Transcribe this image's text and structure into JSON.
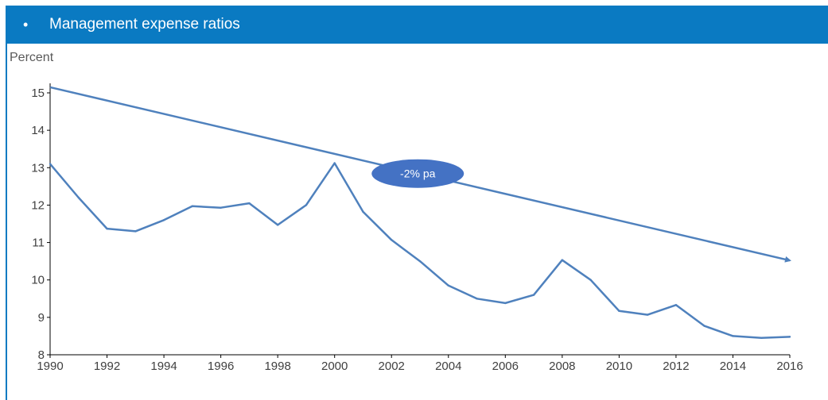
{
  "header": {
    "bullet": "•",
    "title": "Management expense ratios"
  },
  "chart_data": {
    "type": "line",
    "title": "Management expense ratios",
    "ylabel": "Percent",
    "xlabel": "",
    "x": [
      1990,
      1991,
      1992,
      1993,
      1994,
      1995,
      1996,
      1997,
      1998,
      1999,
      2000,
      2001,
      2002,
      2003,
      2004,
      2005,
      2006,
      2007,
      2008,
      2009,
      2010,
      2011,
      2012,
      2013,
      2014,
      2015,
      2016
    ],
    "series": [
      {
        "values": [
          13.1,
          12.2,
          11.37,
          11.3,
          11.6,
          11.97,
          11.93,
          12.05,
          11.47,
          12.0,
          13.12,
          11.82,
          11.07,
          10.5,
          9.85,
          9.5,
          9.38,
          9.6,
          10.53,
          10.0,
          9.17,
          9.07,
          9.33,
          8.77,
          8.5,
          8.45,
          8.48
        ],
        "color": "#4f81bd"
      }
    ],
    "trend": {
      "from": [
        1990,
        15.15
      ],
      "to": [
        2016,
        10.52
      ],
      "color": "#4f81bd",
      "label": "-2% pa",
      "label_at": [
        2002,
        12.8
      ],
      "label_bg": "#4472c4"
    },
    "xlim": [
      1990,
      2016
    ],
    "ylim": [
      8,
      15
    ],
    "yticks": [
      8,
      9,
      10,
      11,
      12,
      13,
      14,
      15
    ],
    "xticks": [
      1990,
      1992,
      1994,
      1996,
      1998,
      2000,
      2002,
      2004,
      2006,
      2008,
      2010,
      2012,
      2014,
      2016
    ],
    "grid": false,
    "legend": "none"
  }
}
